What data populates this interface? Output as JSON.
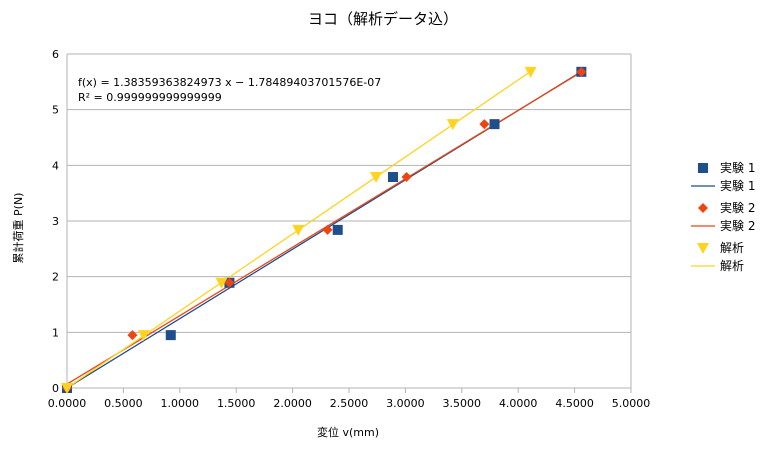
{
  "chart_data": {
    "type": "scatter",
    "title": "ヨコ（解析データ込）",
    "xlabel": "変位 v(mm)",
    "ylabel": "累計荷重 P(N)",
    "xlim": [
      0,
      5
    ],
    "ylim": [
      0,
      6
    ],
    "x_ticks": [
      "0.0000",
      "0.5000",
      "1.0000",
      "1.5000",
      "2.0000",
      "2.5000",
      "3.0000",
      "3.5000",
      "4.0000",
      "4.5000",
      "5.0000"
    ],
    "y_ticks": [
      "0",
      "1",
      "2",
      "3",
      "4",
      "5",
      "6"
    ],
    "grid": "horizontal",
    "legend_position": "right",
    "trendline_equation": "f(x) = 1.38359363824973 x − 1.78489403701576E-07",
    "trendline_r2": "R² = 0.999999999999999",
    "series": [
      {
        "name": "実験 1",
        "marker": "square",
        "color": "#1f4e8c",
        "x": [
          0.0,
          0.92,
          1.44,
          2.4,
          2.89,
          3.79,
          4.56
        ],
        "y": [
          0.0,
          0.95,
          1.89,
          2.84,
          3.79,
          4.74,
          5.68
        ],
        "trend": {
          "name": "実験 1",
          "color": "#1f4e8c",
          "slope": 1.2465,
          "intercept": 0.0
        }
      },
      {
        "name": "実験 2",
        "marker": "diamond",
        "color": "#ee4411",
        "x": [
          0.0,
          0.58,
          1.44,
          2.31,
          3.01,
          3.7,
          4.56
        ],
        "y": [
          0.0,
          0.95,
          1.89,
          2.84,
          3.79,
          4.74,
          5.68
        ],
        "trend": {
          "name": "実験 2",
          "color": "#ee4411",
          "slope": 1.2295,
          "intercept": 0.07
        }
      },
      {
        "name": "解析",
        "marker": "triangle-down",
        "color": "#ffd320",
        "x": [
          0.0,
          0.68,
          1.37,
          2.05,
          2.74,
          3.42,
          4.11
        ],
        "y": [
          0.0,
          0.95,
          1.89,
          2.84,
          3.79,
          4.74,
          5.68
        ],
        "trend": {
          "name": "解析",
          "color": "#ffd320",
          "slope": 1.3836,
          "intercept": 0.0
        }
      }
    ]
  }
}
